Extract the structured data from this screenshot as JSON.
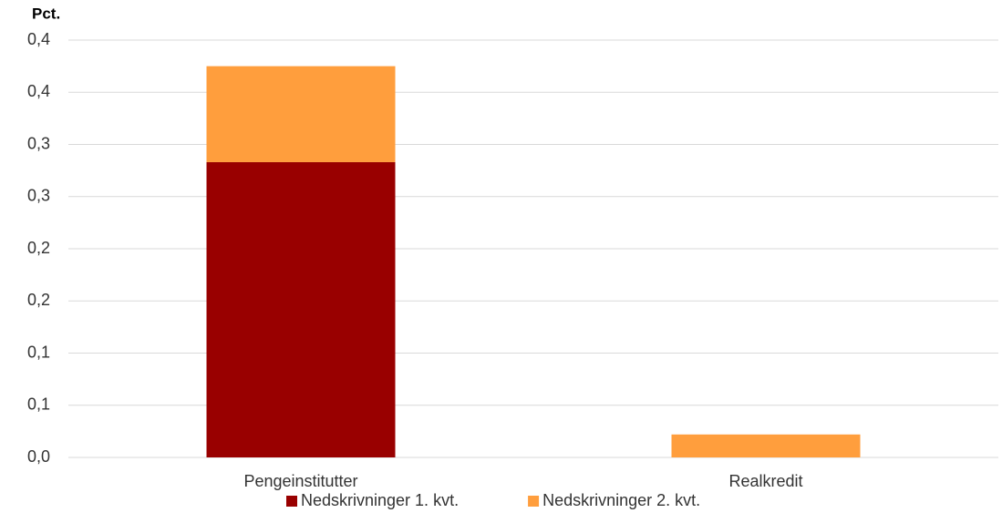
{
  "chart_data": {
    "type": "bar",
    "stacked": true,
    "y_axis_label": "Pct.",
    "categories": [
      "Pengeinstitutter",
      "Realkredit"
    ],
    "series": [
      {
        "name": "Nedskrivninger 1. kvt.",
        "color": "#990000",
        "values": [
          0.283,
          0
        ]
      },
      {
        "name": "Nedskrivninger 2. kvt.",
        "color": "#ff9e3d",
        "values": [
          0.092,
          0.022
        ]
      }
    ],
    "ylim": [
      0,
      0.4
    ],
    "yticks": [
      {
        "value": 0,
        "label": "0,0"
      },
      {
        "value": 0.05,
        "label": "0,1"
      },
      {
        "value": 0.1,
        "label": "0,1"
      },
      {
        "value": 0.15,
        "label": "0,2"
      },
      {
        "value": 0.2,
        "label": "0,2"
      },
      {
        "value": 0.25,
        "label": "0,3"
      },
      {
        "value": 0.3,
        "label": "0,3"
      },
      {
        "value": 0.35,
        "label": "0,4"
      },
      {
        "value": 0.4,
        "label": "0,4"
      }
    ],
    "grid": true,
    "legend": "bottom"
  }
}
